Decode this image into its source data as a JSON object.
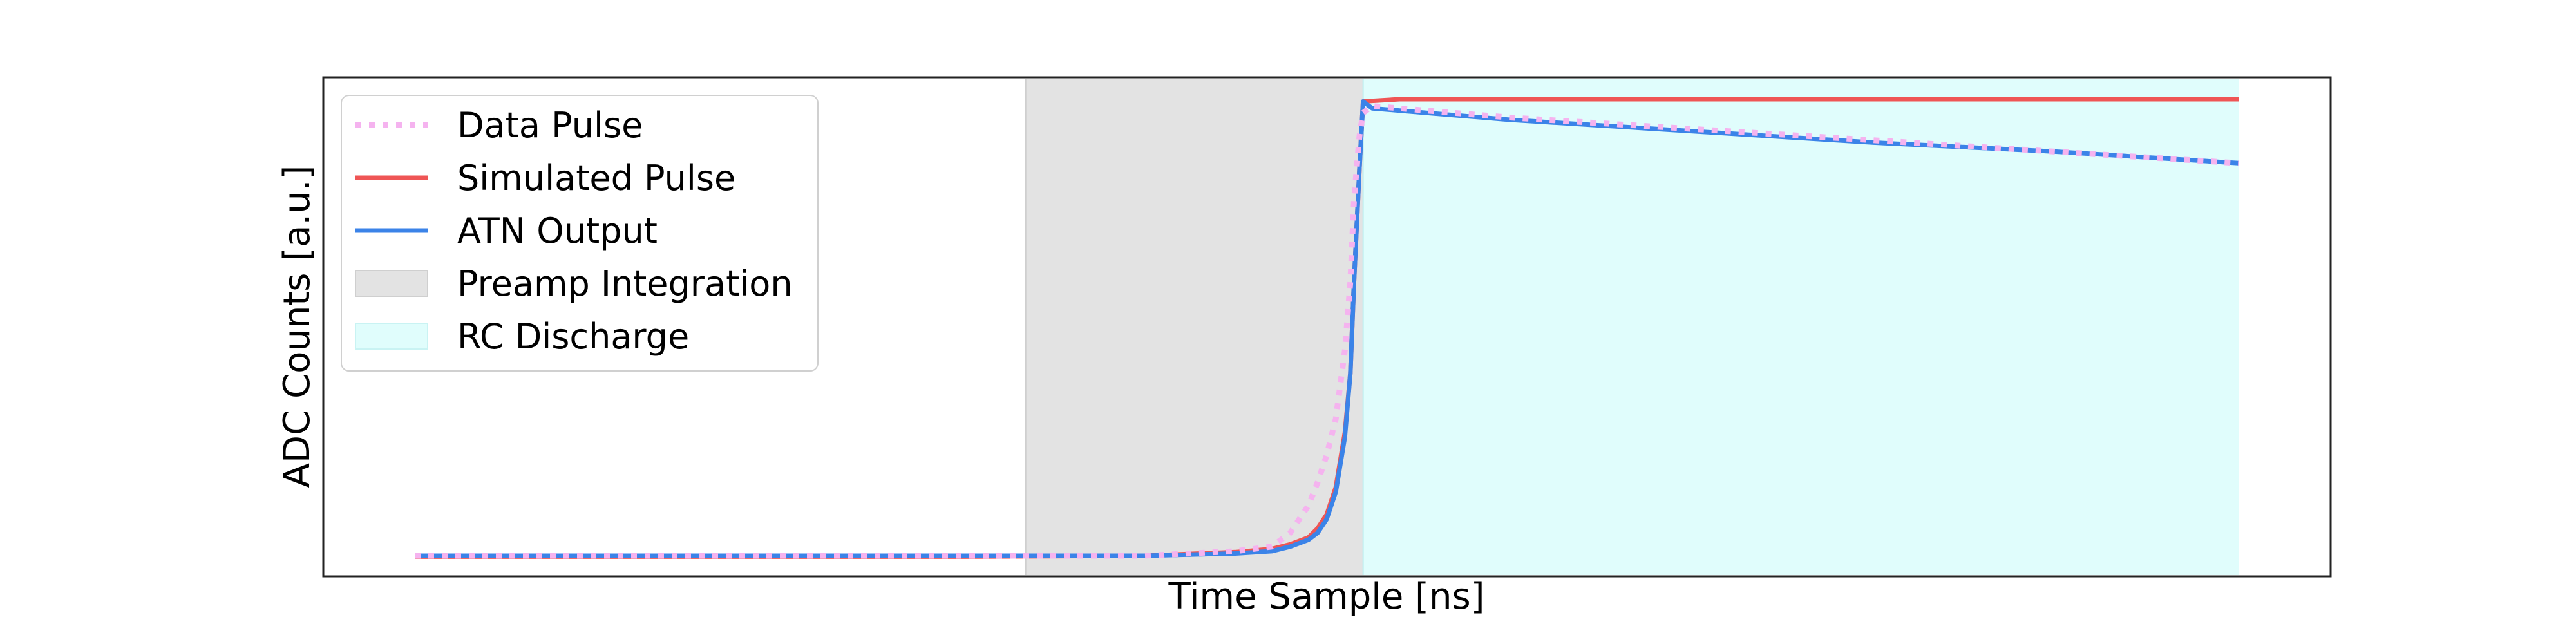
{
  "chart_data": {
    "type": "line",
    "title": "",
    "xlabel": "Time Sample [ns]",
    "ylabel": "ADC Counts [a.u.]",
    "xlim": [
      0,
      1000
    ],
    "ylim": [
      -0.05,
      1.05
    ],
    "x_ticks_shown": false,
    "y_ticks_shown": false,
    "grid": false,
    "legend_position": "top-left",
    "regions": [
      {
        "name": "Preamp Integration",
        "x_start": 335,
        "x_end": 520,
        "color": "#e3e3e3"
      },
      {
        "name": "RC Discharge",
        "x_start": 520,
        "x_end": 1000,
        "color": "#e0fdfc"
      }
    ],
    "series": [
      {
        "name": "Data Pulse",
        "style": "dotted",
        "color": "#f5b3ef",
        "x": [
          0,
          100,
          200,
          300,
          400,
          450,
          470,
          480,
          490,
          495,
          500,
          505,
          510,
          513,
          515,
          518,
          520,
          525,
          540,
          600,
          700,
          800,
          900,
          1000
        ],
        "y": [
          0.0,
          0.0,
          0.0,
          0.0,
          0.0,
          0.01,
          0.02,
          0.05,
          0.11,
          0.16,
          0.22,
          0.3,
          0.45,
          0.6,
          0.78,
          0.92,
          0.97,
          0.985,
          0.98,
          0.96,
          0.935,
          0.91,
          0.885,
          0.86
        ]
      },
      {
        "name": "Simulated Pulse",
        "style": "solid",
        "color": "#ef5555",
        "x": [
          0,
          100,
          200,
          300,
          400,
          450,
          470,
          480,
          490,
          495,
          500,
          505,
          510,
          513,
          515,
          518,
          520,
          540,
          600,
          700,
          800,
          900,
          1000
        ],
        "y": [
          -0.002,
          -0.002,
          -0.002,
          -0.002,
          0.0,
          0.008,
          0.015,
          0.025,
          0.04,
          0.06,
          0.09,
          0.15,
          0.27,
          0.4,
          0.6,
          0.85,
          0.995,
          1.0,
          1.0,
          1.0,
          1.0,
          1.0,
          1.0
        ]
      },
      {
        "name": "ATN Output",
        "style": "solid",
        "color": "#3b83e8",
        "x": [
          0,
          100,
          200,
          300,
          400,
          450,
          470,
          480,
          490,
          495,
          500,
          505,
          510,
          513,
          515,
          518,
          520,
          525,
          540,
          600,
          700,
          800,
          900,
          1000
        ],
        "y": [
          0.0,
          0.0,
          0.0,
          0.0,
          0.0,
          0.005,
          0.01,
          0.02,
          0.035,
          0.05,
          0.08,
          0.14,
          0.26,
          0.4,
          0.6,
          0.85,
          0.995,
          0.98,
          0.975,
          0.955,
          0.93,
          0.905,
          0.885,
          0.86
        ]
      }
    ],
    "legend": [
      {
        "label": "Data Pulse",
        "kind": "dotted-line",
        "color": "#f5b3ef"
      },
      {
        "label": "Simulated Pulse",
        "kind": "line",
        "color": "#ef5555"
      },
      {
        "label": "ATN Output",
        "kind": "line",
        "color": "#3b83e8"
      },
      {
        "label": "Preamp Integration",
        "kind": "patch",
        "color": "#e3e3e3"
      },
      {
        "label": "RC Discharge",
        "kind": "patch",
        "color": "#e0fdfc"
      }
    ]
  }
}
